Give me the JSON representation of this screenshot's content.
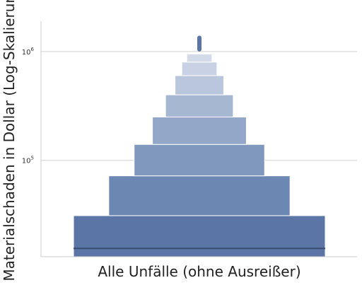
{
  "chart_data": {
    "type": "letter-value (boxen) plot",
    "xlabel": "Alle Unfälle (ohne Ausreißer)",
    "ylabel": "Materialschaden in Dollar (Log-Skalierung)",
    "yscale": "log",
    "ylim": [
      13000,
      1900000
    ],
    "yticks": [
      {
        "value": 100000,
        "base": "10",
        "exp": "5"
      },
      {
        "value": 1000000,
        "base": "10",
        "exp": "6"
      }
    ],
    "grid": "horizontal",
    "median": 15500,
    "boxes": [
      {
        "lower": 13000,
        "upper": 31000,
        "color": "#5b76a6"
      },
      {
        "lower": 31000,
        "upper": 72000,
        "color": "#6d87b3"
      },
      {
        "lower": 72000,
        "upper": 140000,
        "color": "#8098bc"
      },
      {
        "lower": 140000,
        "upper": 250000,
        "color": "#93a8c8"
      },
      {
        "lower": 250000,
        "upper": 400000,
        "color": "#a6b7d2"
      },
      {
        "lower": 400000,
        "upper": 600000,
        "color": "#b9c6db"
      },
      {
        "lower": 600000,
        "upper": 800000,
        "color": "#c8d2e4"
      },
      {
        "lower": 800000,
        "upper": 950000,
        "color": "#d3dbe9"
      }
    ],
    "top_marks": [
      {
        "lower": 1000000,
        "upper": 1400000,
        "color": "#5b76a6"
      }
    ]
  },
  "colors": {
    "axis": "#cccccc",
    "grid": "#d0d0d0",
    "median": "#3b4d6e",
    "box_edge": "#ffffff"
  }
}
